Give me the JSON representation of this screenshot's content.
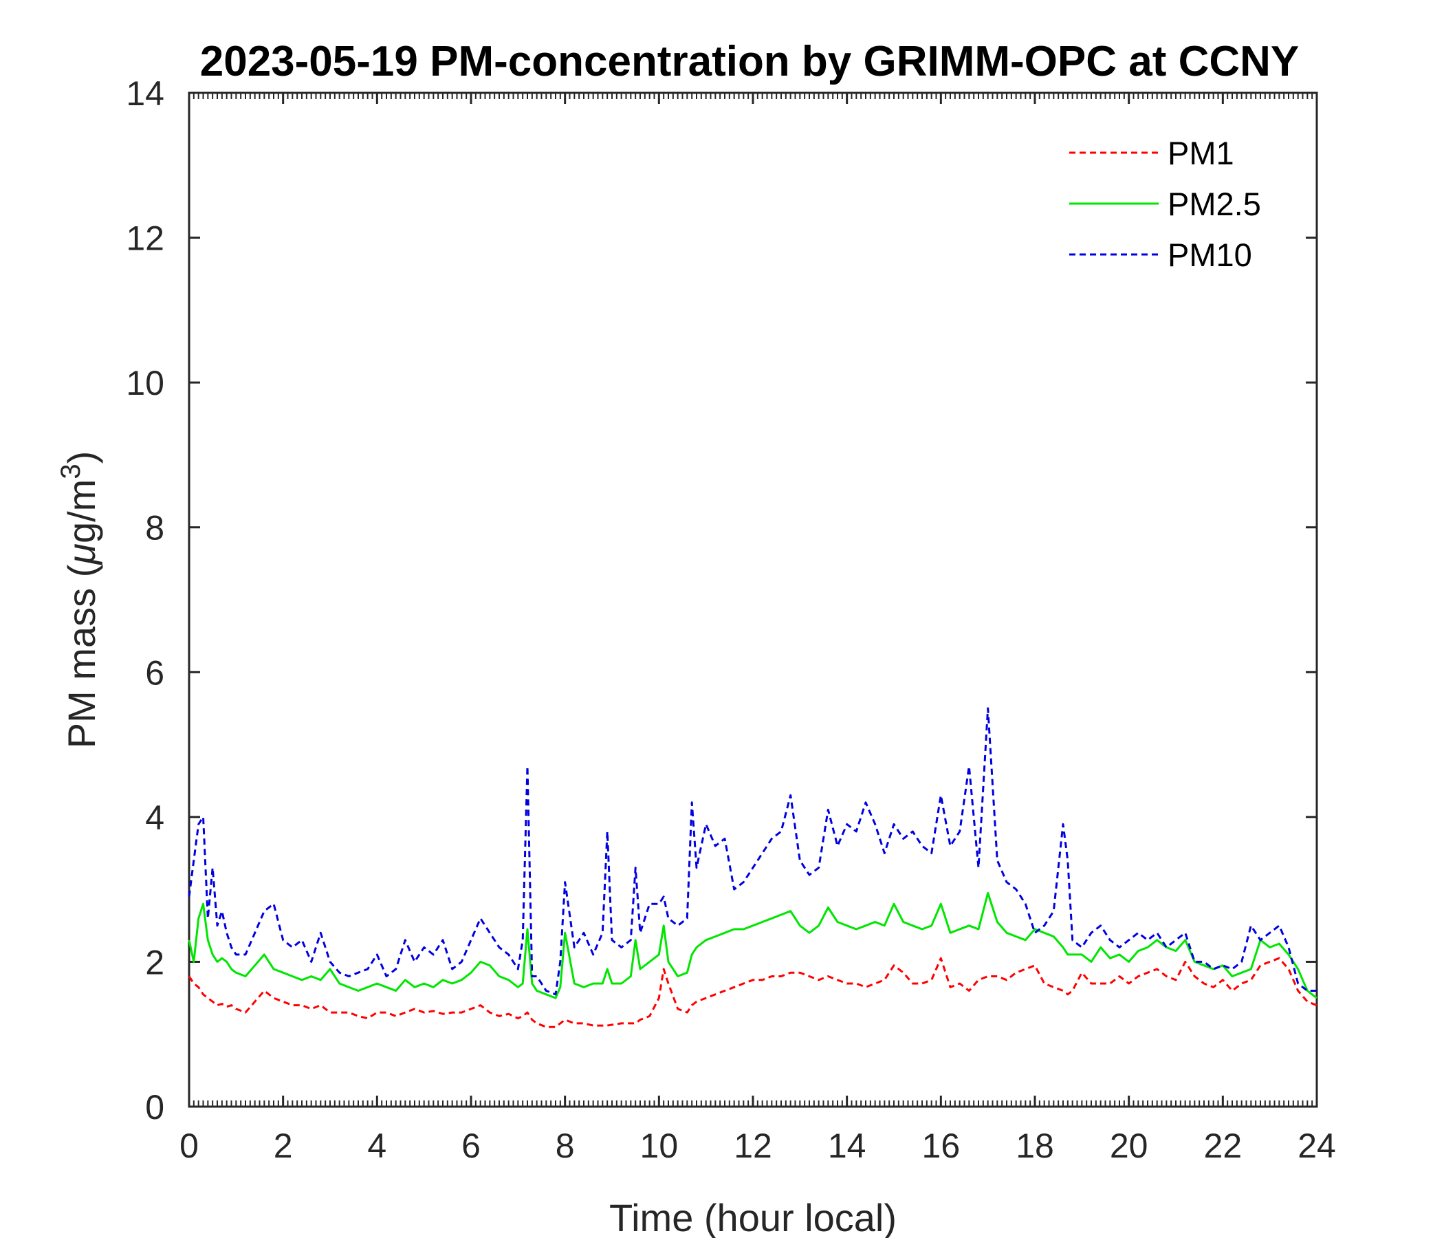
{
  "chart_data": {
    "type": "line",
    "title": "2023-05-19 PM-concentration by GRIMM-OPC at CCNY",
    "xlabel": "Time (hour local)",
    "ylabel": "PM mass (μg/m³)",
    "ylabel_parts": {
      "prefix": "PM mass (",
      "mu": "μ",
      "mid": "g/m",
      "sup": "3",
      "suffix": ")"
    },
    "xlim": [
      0,
      24
    ],
    "ylim": [
      0,
      14
    ],
    "xticks": [
      0,
      2,
      4,
      6,
      8,
      10,
      12,
      14,
      16,
      18,
      20,
      22,
      24
    ],
    "yticks": [
      0,
      2,
      4,
      6,
      8,
      10,
      12,
      14
    ],
    "xtick_labels": [
      "0",
      "2",
      "4",
      "6",
      "8",
      "10",
      "12",
      "14",
      "16",
      "18",
      "20",
      "22",
      "24"
    ],
    "ytick_labels": [
      "0",
      "2",
      "4",
      "6",
      "8",
      "10",
      "12",
      "14"
    ],
    "legend_position": "top-right",
    "grid": false,
    "x": [
      0.0,
      0.1,
      0.2,
      0.3,
      0.4,
      0.5,
      0.6,
      0.7,
      0.8,
      0.9,
      1.0,
      1.2,
      1.4,
      1.6,
      1.8,
      2.0,
      2.2,
      2.4,
      2.6,
      2.8,
      3.0,
      3.2,
      3.4,
      3.6,
      3.8,
      4.0,
      4.2,
      4.4,
      4.6,
      4.8,
      5.0,
      5.2,
      5.4,
      5.6,
      5.8,
      6.0,
      6.2,
      6.4,
      6.6,
      6.8,
      7.0,
      7.1,
      7.2,
      7.3,
      7.4,
      7.6,
      7.8,
      7.9,
      8.0,
      8.2,
      8.4,
      8.6,
      8.8,
      8.9,
      9.0,
      9.2,
      9.4,
      9.5,
      9.6,
      9.8,
      10.0,
      10.1,
      10.2,
      10.4,
      10.6,
      10.7,
      10.8,
      11.0,
      11.2,
      11.4,
      11.6,
      11.8,
      12.0,
      12.2,
      12.4,
      12.6,
      12.8,
      13.0,
      13.2,
      13.4,
      13.6,
      13.8,
      14.0,
      14.2,
      14.4,
      14.6,
      14.8,
      15.0,
      15.2,
      15.4,
      15.6,
      15.8,
      16.0,
      16.2,
      16.4,
      16.6,
      16.8,
      17.0,
      17.2,
      17.4,
      17.6,
      17.8,
      18.0,
      18.2,
      18.4,
      18.6,
      18.7,
      18.8,
      19.0,
      19.2,
      19.4,
      19.6,
      19.8,
      20.0,
      20.2,
      20.4,
      20.6,
      20.8,
      21.0,
      21.2,
      21.4,
      21.6,
      21.8,
      22.0,
      22.2,
      22.4,
      22.6,
      22.8,
      23.0,
      23.2,
      23.4,
      23.6,
      23.8,
      24.0
    ],
    "series": [
      {
        "name": "PM1",
        "color": "#ff0000",
        "style": "dashed",
        "values": [
          1.8,
          1.7,
          1.65,
          1.55,
          1.5,
          1.45,
          1.4,
          1.42,
          1.38,
          1.4,
          1.35,
          1.3,
          1.45,
          1.6,
          1.5,
          1.45,
          1.4,
          1.4,
          1.35,
          1.4,
          1.3,
          1.3,
          1.3,
          1.25,
          1.22,
          1.3,
          1.3,
          1.25,
          1.3,
          1.35,
          1.3,
          1.32,
          1.28,
          1.3,
          1.3,
          1.35,
          1.4,
          1.3,
          1.25,
          1.28,
          1.22,
          1.25,
          1.3,
          1.2,
          1.15,
          1.1,
          1.1,
          1.15,
          1.2,
          1.15,
          1.15,
          1.12,
          1.12,
          1.12,
          1.13,
          1.15,
          1.15,
          1.15,
          1.2,
          1.25,
          1.5,
          1.9,
          1.7,
          1.35,
          1.3,
          1.4,
          1.45,
          1.5,
          1.55,
          1.6,
          1.65,
          1.7,
          1.75,
          1.75,
          1.8,
          1.8,
          1.85,
          1.85,
          1.8,
          1.75,
          1.8,
          1.75,
          1.7,
          1.7,
          1.65,
          1.7,
          1.75,
          1.95,
          1.85,
          1.7,
          1.7,
          1.75,
          2.05,
          1.65,
          1.7,
          1.6,
          1.75,
          1.8,
          1.8,
          1.75,
          1.85,
          1.9,
          1.95,
          1.7,
          1.65,
          1.6,
          1.55,
          1.6,
          1.85,
          1.7,
          1.7,
          1.7,
          1.8,
          1.7,
          1.8,
          1.85,
          1.9,
          1.8,
          1.75,
          2.0,
          1.8,
          1.7,
          1.65,
          1.75,
          1.6,
          1.7,
          1.75,
          1.95,
          2.0,
          2.05,
          1.9,
          1.6,
          1.45,
          1.4
        ]
      },
      {
        "name": "PM2.5",
        "color": "#00e600",
        "style": "solid",
        "values": [
          2.3,
          2.0,
          2.6,
          2.8,
          2.3,
          2.1,
          2.0,
          2.05,
          2.0,
          1.9,
          1.85,
          1.8,
          1.95,
          2.1,
          1.9,
          1.85,
          1.8,
          1.75,
          1.8,
          1.75,
          1.9,
          1.7,
          1.65,
          1.6,
          1.65,
          1.7,
          1.65,
          1.6,
          1.75,
          1.65,
          1.7,
          1.65,
          1.75,
          1.7,
          1.75,
          1.85,
          2.0,
          1.95,
          1.8,
          1.75,
          1.65,
          1.7,
          2.45,
          1.7,
          1.6,
          1.55,
          1.5,
          1.65,
          2.4,
          1.7,
          1.65,
          1.7,
          1.7,
          1.9,
          1.7,
          1.7,
          1.8,
          2.3,
          1.9,
          2.0,
          2.1,
          2.5,
          2.0,
          1.8,
          1.85,
          2.1,
          2.2,
          2.3,
          2.35,
          2.4,
          2.45,
          2.45,
          2.5,
          2.55,
          2.6,
          2.65,
          2.7,
          2.5,
          2.4,
          2.5,
          2.75,
          2.55,
          2.5,
          2.45,
          2.5,
          2.55,
          2.5,
          2.8,
          2.55,
          2.5,
          2.45,
          2.5,
          2.8,
          2.4,
          2.45,
          2.5,
          2.45,
          2.95,
          2.55,
          2.4,
          2.35,
          2.3,
          2.45,
          2.4,
          2.35,
          2.2,
          2.1,
          2.1,
          2.1,
          2.0,
          2.2,
          2.05,
          2.1,
          2.0,
          2.15,
          2.2,
          2.3,
          2.2,
          2.15,
          2.3,
          2.0,
          1.95,
          1.9,
          1.95,
          1.8,
          1.85,
          1.9,
          2.3,
          2.2,
          2.25,
          2.1,
          1.9,
          1.6,
          1.5
        ]
      },
      {
        "name": "PM10",
        "color": "#0000e0",
        "style": "dashed",
        "values": [
          2.9,
          3.4,
          3.9,
          4.0,
          2.6,
          3.3,
          2.5,
          2.7,
          2.4,
          2.2,
          2.1,
          2.1,
          2.4,
          2.7,
          2.8,
          2.3,
          2.2,
          2.3,
          2.0,
          2.4,
          2.0,
          1.85,
          1.8,
          1.85,
          1.9,
          2.1,
          1.8,
          1.9,
          2.3,
          2.0,
          2.2,
          2.1,
          2.3,
          1.9,
          2.0,
          2.3,
          2.6,
          2.4,
          2.2,
          2.1,
          1.9,
          2.3,
          4.7,
          1.8,
          1.8,
          1.6,
          1.55,
          2.0,
          3.1,
          2.2,
          2.4,
          2.1,
          2.4,
          3.8,
          2.3,
          2.2,
          2.3,
          3.3,
          2.4,
          2.8,
          2.8,
          2.9,
          2.6,
          2.5,
          2.6,
          4.2,
          3.3,
          3.9,
          3.6,
          3.7,
          3.0,
          3.1,
          3.3,
          3.5,
          3.7,
          3.8,
          4.3,
          3.4,
          3.2,
          3.3,
          4.1,
          3.6,
          3.9,
          3.8,
          4.2,
          3.9,
          3.5,
          3.9,
          3.7,
          3.8,
          3.6,
          3.5,
          4.3,
          3.6,
          3.8,
          4.7,
          3.3,
          5.5,
          3.4,
          3.1,
          3.0,
          2.8,
          2.4,
          2.5,
          2.7,
          3.9,
          3.4,
          2.3,
          2.2,
          2.4,
          2.5,
          2.3,
          2.2,
          2.3,
          2.4,
          2.3,
          2.4,
          2.2,
          2.3,
          2.4,
          2.0,
          2.0,
          1.9,
          1.95,
          1.9,
          2.0,
          2.5,
          2.3,
          2.4,
          2.5,
          2.2,
          1.7,
          1.6,
          1.6
        ]
      }
    ]
  }
}
